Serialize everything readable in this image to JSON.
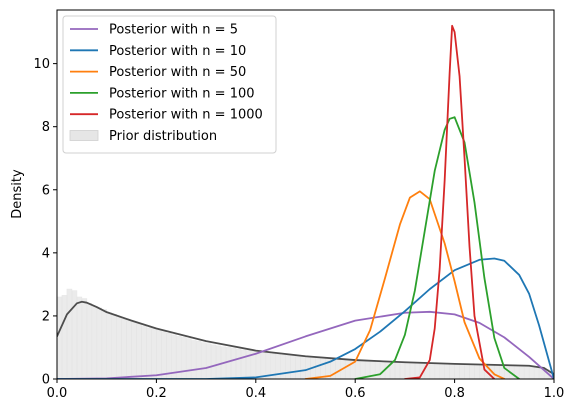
{
  "chart_data": {
    "type": "line",
    "title": "",
    "xlabel": "",
    "ylabel": "Density",
    "xlim": [
      0.0,
      1.0
    ],
    "ylim": [
      0,
      11.7
    ],
    "xticks": [
      "0.0",
      "0.2",
      "0.4",
      "0.6",
      "0.8",
      "1.0"
    ],
    "yticks": [
      "0",
      "2",
      "4",
      "6",
      "8",
      "10"
    ],
    "grid": false,
    "legend_position": "top-left",
    "legend_entries": [
      "Posterior with n = 5",
      "Posterior with n = 10",
      "Posterior with n = 50",
      "Posterior with n = 100",
      "Posterior with n = 1000",
      "Prior distribution"
    ],
    "series": [
      {
        "name": "Posterior with n = 5",
        "color": "#9467bd",
        "x": [
          0.0,
          0.1,
          0.2,
          0.3,
          0.4,
          0.5,
          0.6,
          0.7,
          0.75,
          0.8,
          0.85,
          0.9,
          0.95,
          1.0
        ],
        "y": [
          0.0,
          0.02,
          0.12,
          0.35,
          0.8,
          1.35,
          1.85,
          2.1,
          2.13,
          2.05,
          1.78,
          1.32,
          0.7,
          0.0
        ]
      },
      {
        "name": "Posterior with n = 10",
        "color": "#1f77b4",
        "x": [
          0.0,
          0.3,
          0.4,
          0.5,
          0.55,
          0.6,
          0.65,
          0.7,
          0.75,
          0.8,
          0.85,
          0.88,
          0.9,
          0.93,
          0.95,
          0.97,
          1.0
        ],
        "y": [
          0.0,
          0.0,
          0.05,
          0.28,
          0.55,
          0.95,
          1.5,
          2.15,
          2.85,
          3.45,
          3.78,
          3.82,
          3.75,
          3.3,
          2.7,
          1.7,
          0.0
        ]
      },
      {
        "name": "Posterior with n = 50",
        "color": "#ff7f0e",
        "x": [
          0.5,
          0.55,
          0.6,
          0.63,
          0.66,
          0.69,
          0.71,
          0.73,
          0.75,
          0.78,
          0.8,
          0.82,
          0.85,
          0.88,
          0.9
        ],
        "y": [
          0.0,
          0.1,
          0.55,
          1.55,
          3.2,
          4.9,
          5.75,
          5.95,
          5.7,
          4.3,
          3.1,
          1.8,
          0.65,
          0.15,
          0.0
        ]
      },
      {
        "name": "Posterior with n = 100",
        "color": "#2ca02c",
        "x": [
          0.6,
          0.65,
          0.68,
          0.7,
          0.72,
          0.74,
          0.76,
          0.78,
          0.79,
          0.8,
          0.82,
          0.84,
          0.86,
          0.88,
          0.9,
          0.93
        ],
        "y": [
          0.0,
          0.15,
          0.6,
          1.4,
          2.8,
          4.7,
          6.6,
          7.9,
          8.25,
          8.3,
          7.5,
          5.6,
          3.2,
          1.3,
          0.35,
          0.0
        ]
      },
      {
        "name": "Posterior with n = 1000",
        "color": "#d62728",
        "x": [
          0.7,
          0.73,
          0.75,
          0.76,
          0.77,
          0.78,
          0.79,
          0.795,
          0.8,
          0.81,
          0.82,
          0.83,
          0.84,
          0.86,
          0.88
        ],
        "y": [
          0.0,
          0.05,
          0.6,
          1.6,
          3.5,
          6.3,
          9.7,
          11.2,
          11.0,
          9.6,
          7.0,
          4.2,
          2.0,
          0.3,
          0.0
        ]
      },
      {
        "name": "",
        "color": "#4d4d4d",
        "x": [
          0.0,
          0.02,
          0.04,
          0.05,
          0.06,
          0.08,
          0.1,
          0.15,
          0.2,
          0.3,
          0.4,
          0.5,
          0.6,
          0.7,
          0.8,
          0.9,
          0.95,
          0.98,
          1.0
        ],
        "y": [
          1.35,
          2.05,
          2.4,
          2.45,
          2.42,
          2.28,
          2.12,
          1.85,
          1.6,
          1.2,
          0.9,
          0.72,
          0.6,
          0.53,
          0.48,
          0.44,
          0.42,
          0.35,
          0.15
        ]
      }
    ],
    "prior_histogram": {
      "name": "Prior distribution",
      "color": "#d3d3d3",
      "bin_width": 0.01,
      "bin_start": 0.0,
      "values": [
        2.6,
        2.65,
        2.85,
        2.8,
        2.6,
        2.55,
        2.4,
        2.3,
        2.25,
        2.2,
        2.1,
        2.05,
        1.95,
        1.9,
        1.85,
        1.8,
        1.75,
        1.68,
        1.62,
        1.6,
        1.55,
        1.5,
        1.45,
        1.4,
        1.35,
        1.32,
        1.28,
        1.22,
        1.2,
        1.15,
        1.12,
        1.08,
        1.05,
        1.02,
        1.0,
        0.98,
        0.95,
        0.92,
        0.9,
        0.88,
        0.86,
        0.84,
        0.82,
        0.8,
        0.78,
        0.76,
        0.75,
        0.74,
        0.72,
        0.71,
        0.7,
        0.69,
        0.68,
        0.67,
        0.66,
        0.65,
        0.64,
        0.63,
        0.62,
        0.61,
        0.6,
        0.6,
        0.59,
        0.58,
        0.57,
        0.57,
        0.56,
        0.55,
        0.55,
        0.54,
        0.54,
        0.53,
        0.53,
        0.52,
        0.52,
        0.51,
        0.51,
        0.5,
        0.5,
        0.49,
        0.49,
        0.48,
        0.48,
        0.47,
        0.47,
        0.46,
        0.46,
        0.45,
        0.45,
        0.44,
        0.44,
        0.43,
        0.43,
        0.42,
        0.42,
        0.41,
        0.4,
        0.38,
        0.3,
        0.2
      ]
    }
  }
}
